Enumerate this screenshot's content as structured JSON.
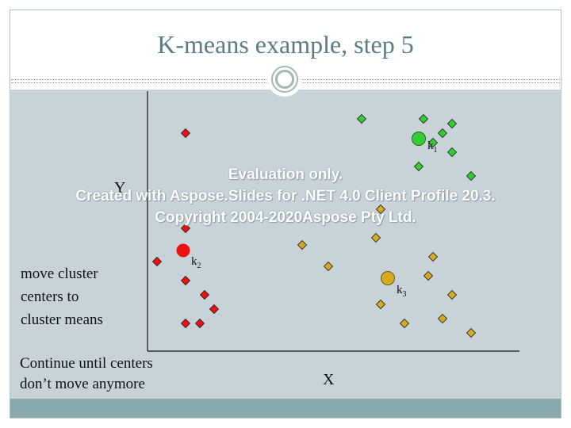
{
  "slide": {
    "title": "K-means example, step 5",
    "y_axis_label": "Y",
    "x_axis_label": "X",
    "note_lines": [
      "move cluster",
      "centers to",
      "cluster means"
    ],
    "bottom_lines": [
      "Continue until centers",
      "don’t move anymore"
    ]
  },
  "watermark": {
    "line1": "Evaluation only.",
    "line2": "Created with Aspose.Slides for .NET 4.0 Client Profile 20.3.",
    "line3": "Copyright 2004-2020Aspose Pty Ltd."
  },
  "colors": {
    "cluster1": "#33cc33",
    "cluster2": "#ee1111",
    "cluster3": "#d4aa22",
    "title": "#5b7b87",
    "panel": "#c8d3d9",
    "footer": "#88a9ad"
  },
  "centers": [
    {
      "letter": "k",
      "index": "1",
      "cluster": "cluster1"
    },
    {
      "letter": "k",
      "index": "2",
      "cluster": "cluster2"
    },
    {
      "letter": "k",
      "index": "3",
      "cluster": "cluster3"
    }
  ]
}
